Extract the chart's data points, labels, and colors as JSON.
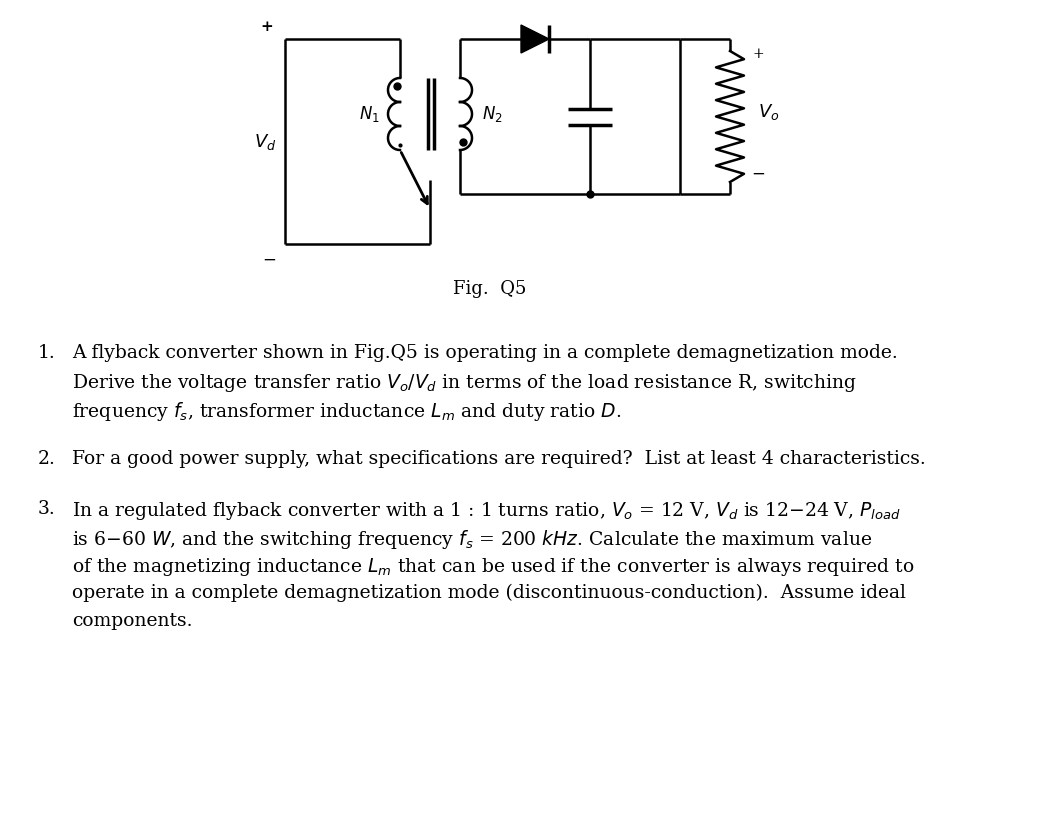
{
  "background_color": "#ffffff",
  "fig_caption": "Fig.  Q5",
  "fig_caption_fontsize": 13,
  "q1_lines": [
    "A flyback converter shown in Fig.Q5 is operating in a complete demagnetization mode.",
    "Derive the voltage transfer ratio $V_o/V_d$ in terms of the load resistance R, switching",
    "frequency $f_s$, transformer inductance $L_m$ and duty ratio $D$."
  ],
  "q2_lines": [
    "For a good power supply, what specifications are required?  List at least 4 characteristics."
  ],
  "q3_lines": [
    "In a regulated flyback converter with a 1 : 1 turns ratio, $V_o$ = 12 V, $V_d$ is 12−24 V, $P_{load}$",
    "is 6−60 $W$, and the switching frequency $f_s$ = 200 $kHz$. Calculate the maximum value",
    "of the magnetizing inductance $L_m$ that can be used if the converter is always required to",
    "operate in a complete demagnetization mode (discontinuous-conduction).  Assume ideal",
    "components."
  ]
}
